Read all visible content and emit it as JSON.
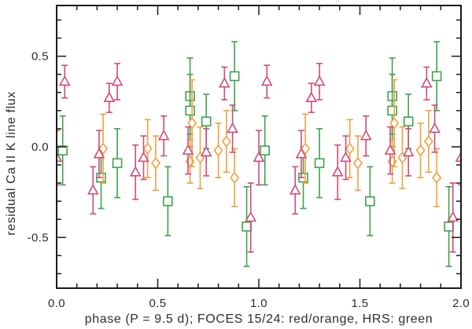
{
  "figure": {
    "background_color": "#ffffff",
    "frame_color": "#1a1a1a",
    "text_color": "#2e2e2e"
  },
  "chart_data": {
    "type": "scatter",
    "title": "",
    "xlabel": "phase (P = 9.5 d); FOCES 15/24: red/orange, HRS: green",
    "ylabel": "residual Ca II K line flux",
    "xlim": [
      0.0,
      2.0
    ],
    "ylim": [
      -0.78,
      0.78
    ],
    "grid": false,
    "legend_position": "none (color key is written in the x-axis label)",
    "xticks": {
      "major": [
        0.0,
        0.5,
        1.0,
        1.5,
        2.0
      ],
      "labels": [
        "0.0",
        "0.5",
        "1.0",
        "1.5",
        "2.0"
      ],
      "minor_step": 0.1
    },
    "yticks": {
      "major": [
        -0.5,
        0.0,
        0.5
      ],
      "labels": [
        "-0.5",
        "0.0",
        "0.5"
      ],
      "minor_step": 0.1
    },
    "phase_folding": {
      "note": "phase-folded data: every point is plotted at its phase and repeated at phase+1; copies falling at the plot edges are clipped",
      "repeat_offsets": [
        -1,
        0,
        1
      ]
    },
    "point_format": [
      "phase",
      "residual_flux",
      "error_half_length"
    ],
    "series": [
      {
        "name": "HRS",
        "marker": "square",
        "color": "#3da34b",
        "points": [
          [
            0.03,
            -0.02,
            0.19
          ],
          [
            0.22,
            -0.17,
            0.17
          ],
          [
            0.3,
            -0.09,
            0.19
          ],
          [
            0.55,
            -0.3,
            0.19
          ],
          [
            0.66,
            0.28,
            0.21
          ],
          [
            0.66,
            0.2,
            0.2
          ],
          [
            0.74,
            0.14,
            0.15
          ],
          [
            0.88,
            0.39,
            0.19
          ],
          [
            0.94,
            -0.44,
            0.22
          ]
        ]
      },
      {
        "name": "FOCES 24",
        "marker": "diamond",
        "color": "#f0a13e",
        "points": [
          [
            0.23,
            -0.01,
            0.19
          ],
          [
            0.45,
            -0.01,
            0.16
          ],
          [
            0.49,
            -0.09,
            0.15
          ],
          [
            0.66,
            -0.08,
            0.12
          ],
          [
            0.67,
            0.13,
            0.24
          ],
          [
            0.71,
            -0.06,
            0.17
          ],
          [
            0.8,
            -0.02,
            0.15
          ],
          [
            0.84,
            0.03,
            0.17
          ],
          [
            0.88,
            -0.17,
            0.16
          ]
        ]
      },
      {
        "name": "FOCES 15",
        "marker": "triangle",
        "color": "#d14b79",
        "points": [
          [
            0.04,
            0.36,
            0.09
          ],
          [
            0.18,
            -0.24,
            0.13
          ],
          [
            0.21,
            -0.04,
            0.13
          ],
          [
            0.26,
            0.27,
            0.08
          ],
          [
            0.3,
            0.36,
            0.1
          ],
          [
            0.39,
            -0.14,
            0.15
          ],
          [
            0.43,
            -0.06,
            0.12
          ],
          [
            0.53,
            0.06,
            0.11
          ],
          [
            0.65,
            -0.02,
            0.13
          ],
          [
            0.74,
            -0.03,
            0.13
          ],
          [
            0.83,
            0.35,
            0.09
          ],
          [
            0.87,
            0.1,
            0.13
          ],
          [
            0.96,
            -0.39,
            0.19
          ],
          [
            1.0,
            -0.06,
            0.15
          ]
        ]
      }
    ]
  }
}
